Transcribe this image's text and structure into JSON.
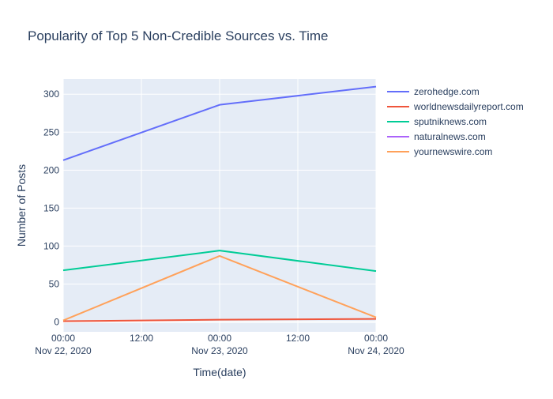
{
  "chart_data": {
    "type": "line",
    "title": "Popularity of Top 5 Non-Credible Sources vs. Time",
    "xlabel": "Time(date)",
    "ylabel": "Number of Posts",
    "x": [
      "2020-11-22T00:00",
      "2020-11-23T00:00",
      "2020-11-24T00:00"
    ],
    "xlim": [
      "2020-11-22T00:00",
      "2020-11-24T00:00"
    ],
    "x_ticks": [
      {
        "at": "2020-11-22T00:00",
        "label": "00:00",
        "sublabel": "Nov 22, 2020"
      },
      {
        "at": "2020-11-22T12:00",
        "label": "12:00",
        "sublabel": ""
      },
      {
        "at": "2020-11-23T00:00",
        "label": "00:00",
        "sublabel": "Nov 23, 2020"
      },
      {
        "at": "2020-11-23T12:00",
        "label": "12:00",
        "sublabel": ""
      },
      {
        "at": "2020-11-24T00:00",
        "label": "00:00",
        "sublabel": "Nov 24, 2020"
      }
    ],
    "ylim": [
      -13,
      320
    ],
    "y_ticks": [
      0,
      50,
      100,
      150,
      200,
      250,
      300
    ],
    "grid": true,
    "legend_position": "top-right",
    "series": [
      {
        "name": "zerohedge.com",
        "color": "#636efa",
        "values": [
          213,
          286,
          310
        ]
      },
      {
        "name": "worldnewsdailyreport.com",
        "color": "#EF553B",
        "values": [
          1,
          3,
          4
        ]
      },
      {
        "name": "sputniknews.com",
        "color": "#00cc96",
        "values": [
          68,
          94,
          67
        ]
      },
      {
        "name": "naturalnews.com",
        "color": "#ab63fa",
        "values": [
          null,
          null,
          null
        ]
      },
      {
        "name": "yournewswire.com",
        "color": "#FFA15A",
        "values": [
          2,
          87,
          6
        ]
      }
    ]
  }
}
